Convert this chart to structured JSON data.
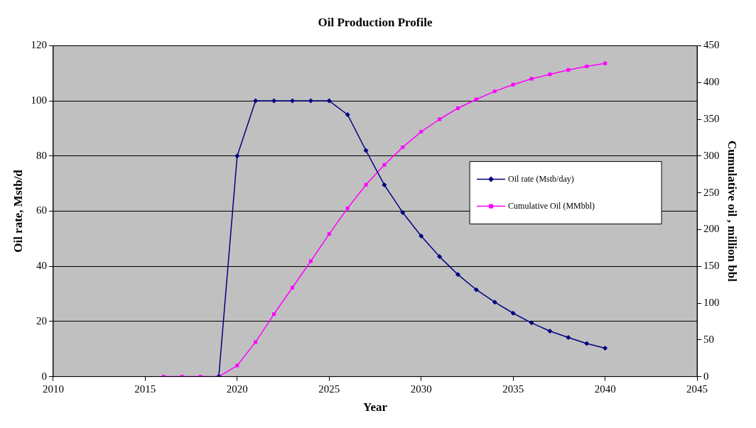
{
  "chart_data": {
    "type": "line",
    "title": "Oil Production Profile",
    "xlabel": "Year",
    "ylabel": "Oil rate, Mstb/d",
    "y2label": "Cumulative oil , million bbl",
    "xlim": [
      2010,
      2045
    ],
    "xticks": [
      2010,
      2015,
      2020,
      2025,
      2030,
      2035,
      2040,
      2045
    ],
    "ylim": [
      0,
      120
    ],
    "yticks": [
      0,
      20,
      40,
      60,
      80,
      100,
      120
    ],
    "y2lim": [
      0,
      450
    ],
    "y2ticks": [
      0,
      50,
      100,
      150,
      200,
      250,
      300,
      350,
      400,
      450
    ],
    "grid": "y",
    "legend": "right",
    "line_style": "solid",
    "series": [
      {
        "name": "Oil rate (Mstb/day)",
        "color": "#000080",
        "marker": "diamond",
        "x": [
          2019,
          2020,
          2021,
          2022,
          2023,
          2024,
          2025,
          2026,
          2027,
          2028,
          2029,
          2030,
          2031,
          2032,
          2033,
          2034,
          2035,
          2036,
          2037,
          2038,
          2039,
          2040
        ],
        "values": [
          0,
          80,
          100,
          100,
          100,
          100,
          100,
          95,
          82,
          69.5,
          59.5,
          51,
          43.5,
          37,
          31.5,
          27,
          23,
          19.5,
          16.5,
          14.2,
          12,
          10.3
        ]
      },
      {
        "name": "Cumulative Oil (MMbbl)",
        "color": "#ff00ff",
        "marker": "square",
        "axis": "y2",
        "x": [
          2016,
          2017,
          2018,
          2019,
          2020,
          2021,
          2022,
          2023,
          2024,
          2025,
          2026,
          2027,
          2028,
          2029,
          2030,
          2031,
          2032,
          2033,
          2034,
          2035,
          2036,
          2037,
          2038,
          2039,
          2040
        ],
        "values": [
          0,
          0,
          0,
          0,
          15,
          47,
          85,
          121,
          157,
          194,
          229,
          261,
          288,
          312,
          333,
          350,
          365,
          377,
          388,
          397,
          405,
          411,
          417,
          422,
          426
        ]
      }
    ]
  }
}
